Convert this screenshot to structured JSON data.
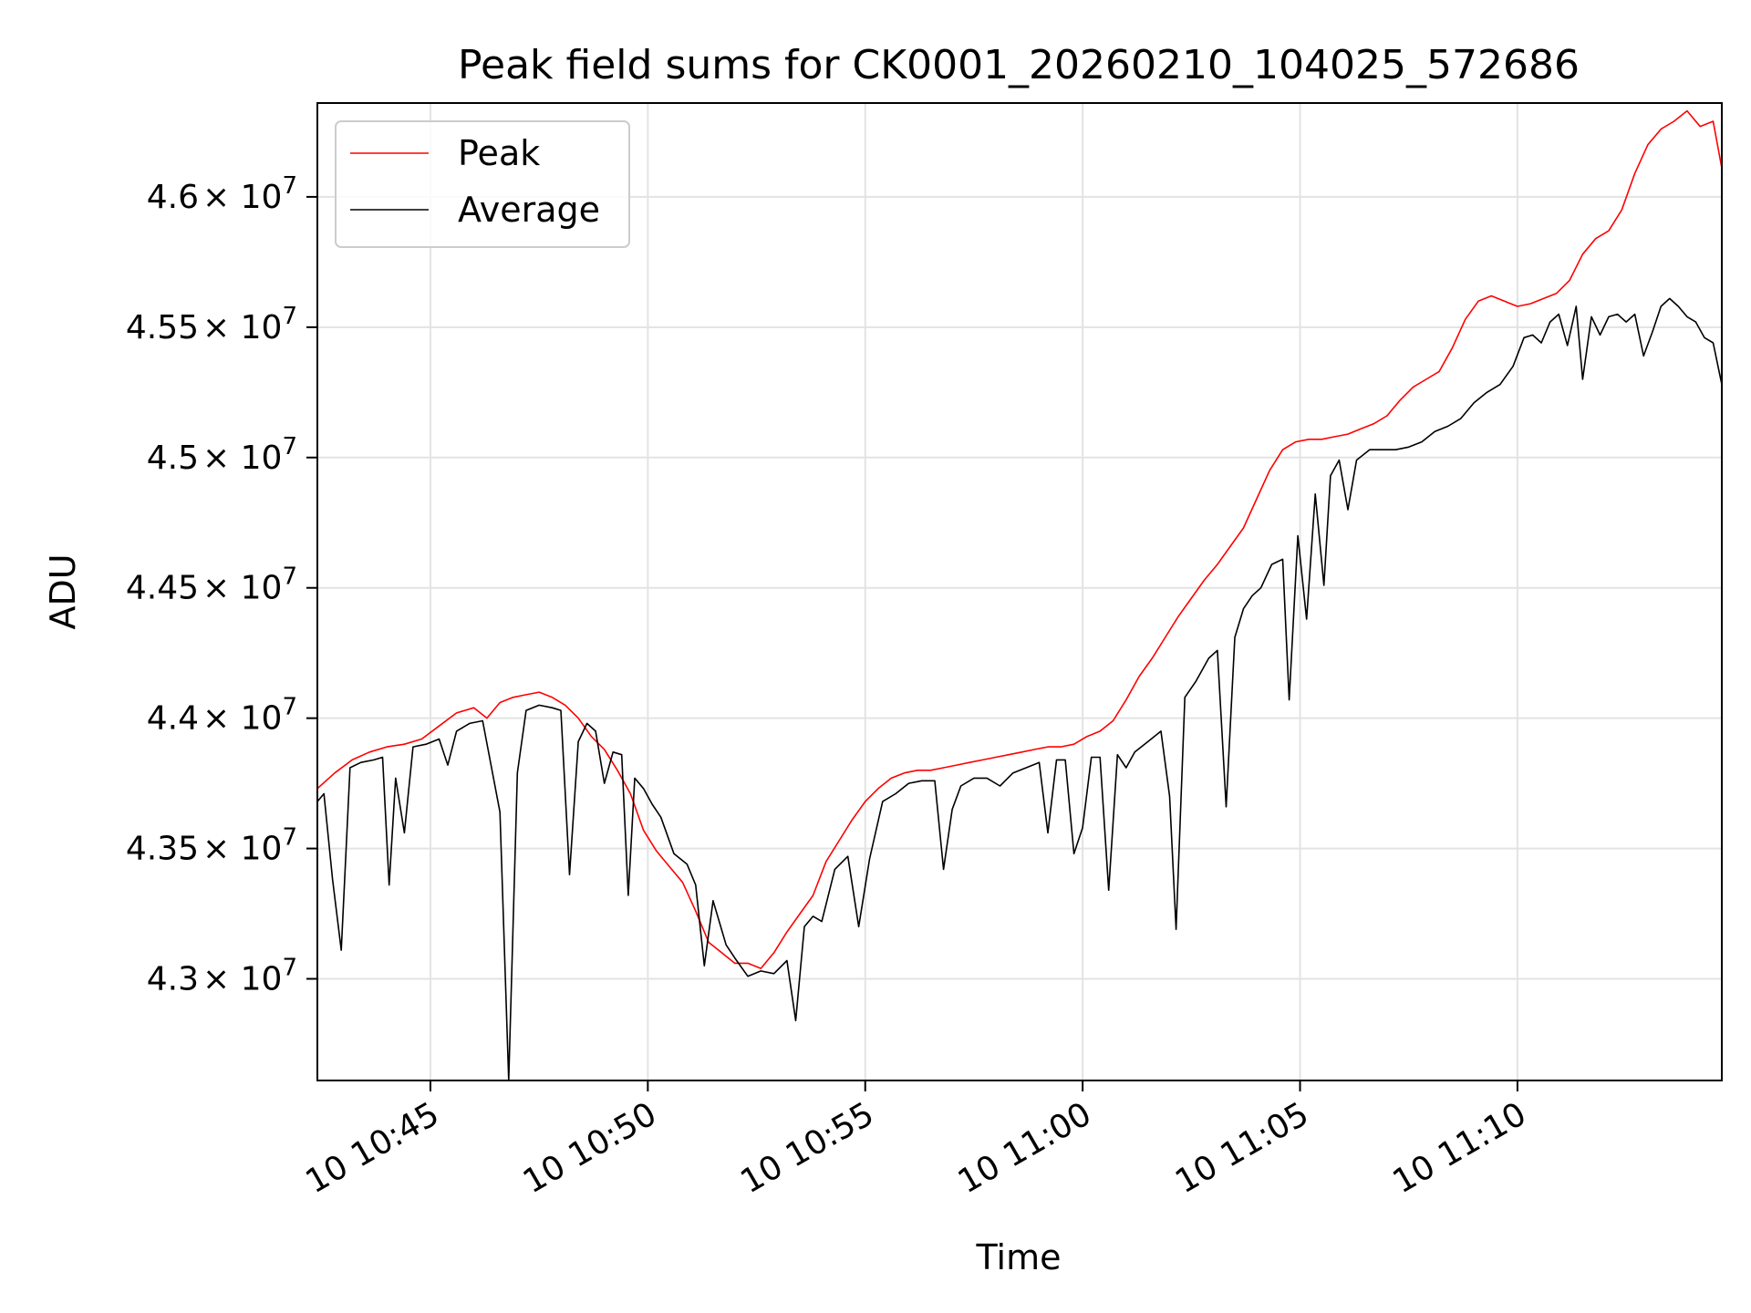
{
  "chart_data": {
    "type": "line",
    "title": "Peak field sums for CK0001_20260210_104025_572686",
    "xlabel": "Time",
    "ylabel": "ADU",
    "x_unit": "minutes after 10:40",
    "xlim": [
      2.4,
      34.7
    ],
    "ylim": [
      42610000,
      46360000
    ],
    "x_ticks": [
      {
        "value": 5,
        "label": "10 10:45"
      },
      {
        "value": 10,
        "label": "10 10:50"
      },
      {
        "value": 15,
        "label": "10 10:55"
      },
      {
        "value": 20,
        "label": "10 11:00"
      },
      {
        "value": 25,
        "label": "10 11:05"
      },
      {
        "value": 30,
        "label": "10 11:10"
      }
    ],
    "y_ticks": [
      {
        "value": 43000000,
        "mantissa": "4.3"
      },
      {
        "value": 43500000,
        "mantissa": "4.35"
      },
      {
        "value": 44000000,
        "mantissa": "4.4"
      },
      {
        "value": 44500000,
        "mantissa": "4.45"
      },
      {
        "value": 45000000,
        "mantissa": "4.5"
      },
      {
        "value": 45500000,
        "mantissa": "4.55"
      },
      {
        "value": 46000000,
        "mantissa": "4.6"
      }
    ],
    "y_tick_suffix": "× 10",
    "y_tick_exponent": "7",
    "grid": true,
    "legend_position": "top-left",
    "series": [
      {
        "name": "Peak",
        "color": "#ff0000",
        "points": [
          [
            2.4,
            43730000
          ],
          [
            2.8,
            43790000
          ],
          [
            3.2,
            43840000
          ],
          [
            3.6,
            43870000
          ],
          [
            4.0,
            43890000
          ],
          [
            4.4,
            43900000
          ],
          [
            4.8,
            43920000
          ],
          [
            5.2,
            43970000
          ],
          [
            5.6,
            44020000
          ],
          [
            6.0,
            44040000
          ],
          [
            6.3,
            44000000
          ],
          [
            6.6,
            44060000
          ],
          [
            6.9,
            44080000
          ],
          [
            7.2,
            44090000
          ],
          [
            7.5,
            44100000
          ],
          [
            7.8,
            44080000
          ],
          [
            8.1,
            44050000
          ],
          [
            8.4,
            44000000
          ],
          [
            8.7,
            43930000
          ],
          [
            9.0,
            43880000
          ],
          [
            9.3,
            43800000
          ],
          [
            9.6,
            43710000
          ],
          [
            9.9,
            43570000
          ],
          [
            10.2,
            43490000
          ],
          [
            10.5,
            43430000
          ],
          [
            10.8,
            43370000
          ],
          [
            11.1,
            43260000
          ],
          [
            11.4,
            43140000
          ],
          [
            11.7,
            43100000
          ],
          [
            12.0,
            43060000
          ],
          [
            12.3,
            43060000
          ],
          [
            12.6,
            43040000
          ],
          [
            12.9,
            43100000
          ],
          [
            13.2,
            43180000
          ],
          [
            13.5,
            43250000
          ],
          [
            13.8,
            43320000
          ],
          [
            14.1,
            43450000
          ],
          [
            14.4,
            43530000
          ],
          [
            14.7,
            43610000
          ],
          [
            15.0,
            43680000
          ],
          [
            15.3,
            43730000
          ],
          [
            15.6,
            43770000
          ],
          [
            15.9,
            43790000
          ],
          [
            16.2,
            43800000
          ],
          [
            16.5,
            43800000
          ],
          [
            16.8,
            43810000
          ],
          [
            17.1,
            43820000
          ],
          [
            17.4,
            43830000
          ],
          [
            17.7,
            43840000
          ],
          [
            18.0,
            43850000
          ],
          [
            18.3,
            43860000
          ],
          [
            18.6,
            43870000
          ],
          [
            18.9,
            43880000
          ],
          [
            19.2,
            43890000
          ],
          [
            19.5,
            43890000
          ],
          [
            19.8,
            43900000
          ],
          [
            20.1,
            43930000
          ],
          [
            20.4,
            43950000
          ],
          [
            20.7,
            43990000
          ],
          [
            21.0,
            44070000
          ],
          [
            21.3,
            44160000
          ],
          [
            21.6,
            44230000
          ],
          [
            21.9,
            44310000
          ],
          [
            22.2,
            44390000
          ],
          [
            22.5,
            44460000
          ],
          [
            22.8,
            44530000
          ],
          [
            23.1,
            44590000
          ],
          [
            23.4,
            44660000
          ],
          [
            23.7,
            44730000
          ],
          [
            24.0,
            44840000
          ],
          [
            24.3,
            44950000
          ],
          [
            24.6,
            45030000
          ],
          [
            24.9,
            45060000
          ],
          [
            25.2,
            45070000
          ],
          [
            25.5,
            45070000
          ],
          [
            25.8,
            45080000
          ],
          [
            26.1,
            45090000
          ],
          [
            26.4,
            45110000
          ],
          [
            26.7,
            45130000
          ],
          [
            27.0,
            45160000
          ],
          [
            27.3,
            45220000
          ],
          [
            27.6,
            45270000
          ],
          [
            27.9,
            45300000
          ],
          [
            28.2,
            45330000
          ],
          [
            28.5,
            45420000
          ],
          [
            28.8,
            45530000
          ],
          [
            29.1,
            45600000
          ],
          [
            29.4,
            45620000
          ],
          [
            29.7,
            45600000
          ],
          [
            30.0,
            45580000
          ],
          [
            30.3,
            45590000
          ],
          [
            30.6,
            45610000
          ],
          [
            30.9,
            45630000
          ],
          [
            31.2,
            45680000
          ],
          [
            31.5,
            45780000
          ],
          [
            31.8,
            45840000
          ],
          [
            32.1,
            45870000
          ],
          [
            32.4,
            45950000
          ],
          [
            32.7,
            46090000
          ],
          [
            33.0,
            46200000
          ],
          [
            33.3,
            46260000
          ],
          [
            33.6,
            46290000
          ],
          [
            33.9,
            46330000
          ],
          [
            34.2,
            46270000
          ],
          [
            34.5,
            46290000
          ],
          [
            34.7,
            46110000
          ]
        ]
      },
      {
        "name": "Average",
        "color": "#000000",
        "points": [
          [
            2.4,
            43680000
          ],
          [
            2.55,
            43710000
          ],
          [
            2.75,
            43380000
          ],
          [
            2.95,
            43110000
          ],
          [
            3.15,
            43810000
          ],
          [
            3.4,
            43830000
          ],
          [
            3.7,
            43840000
          ],
          [
            3.9,
            43850000
          ],
          [
            4.05,
            43360000
          ],
          [
            4.2,
            43770000
          ],
          [
            4.4,
            43560000
          ],
          [
            4.6,
            43890000
          ],
          [
            4.9,
            43900000
          ],
          [
            5.2,
            43920000
          ],
          [
            5.4,
            43820000
          ],
          [
            5.6,
            43950000
          ],
          [
            5.9,
            43980000
          ],
          [
            6.2,
            43990000
          ],
          [
            6.6,
            43640000
          ],
          [
            6.8,
            42610000
          ],
          [
            7.0,
            43790000
          ],
          [
            7.2,
            44030000
          ],
          [
            7.5,
            44050000
          ],
          [
            7.8,
            44040000
          ],
          [
            8.0,
            44030000
          ],
          [
            8.2,
            43400000
          ],
          [
            8.4,
            43910000
          ],
          [
            8.6,
            43980000
          ],
          [
            8.8,
            43950000
          ],
          [
            9.0,
            43750000
          ],
          [
            9.2,
            43870000
          ],
          [
            9.4,
            43860000
          ],
          [
            9.55,
            43320000
          ],
          [
            9.7,
            43770000
          ],
          [
            9.9,
            43730000
          ],
          [
            10.1,
            43670000
          ],
          [
            10.3,
            43620000
          ],
          [
            10.6,
            43480000
          ],
          [
            10.9,
            43440000
          ],
          [
            11.1,
            43360000
          ],
          [
            11.3,
            43050000
          ],
          [
            11.5,
            43300000
          ],
          [
            11.8,
            43130000
          ],
          [
            12.0,
            43080000
          ],
          [
            12.3,
            43010000
          ],
          [
            12.6,
            43030000
          ],
          [
            12.9,
            43020000
          ],
          [
            13.2,
            43070000
          ],
          [
            13.4,
            42840000
          ],
          [
            13.6,
            43200000
          ],
          [
            13.8,
            43240000
          ],
          [
            14.0,
            43220000
          ],
          [
            14.3,
            43420000
          ],
          [
            14.6,
            43470000
          ],
          [
            14.85,
            43200000
          ],
          [
            15.1,
            43460000
          ],
          [
            15.4,
            43680000
          ],
          [
            15.7,
            43710000
          ],
          [
            16.0,
            43750000
          ],
          [
            16.3,
            43760000
          ],
          [
            16.6,
            43760000
          ],
          [
            16.8,
            43420000
          ],
          [
            17.0,
            43650000
          ],
          [
            17.2,
            43740000
          ],
          [
            17.5,
            43770000
          ],
          [
            17.8,
            43770000
          ],
          [
            18.1,
            43740000
          ],
          [
            18.4,
            43790000
          ],
          [
            18.7,
            43810000
          ],
          [
            19.0,
            43830000
          ],
          [
            19.2,
            43560000
          ],
          [
            19.4,
            43840000
          ],
          [
            19.6,
            43840000
          ],
          [
            19.8,
            43480000
          ],
          [
            20.0,
            43580000
          ],
          [
            20.2,
            43850000
          ],
          [
            20.4,
            43850000
          ],
          [
            20.6,
            43340000
          ],
          [
            20.8,
            43860000
          ],
          [
            21.0,
            43810000
          ],
          [
            21.2,
            43870000
          ],
          [
            21.5,
            43910000
          ],
          [
            21.8,
            43950000
          ],
          [
            22.0,
            43700000
          ],
          [
            22.15,
            43190000
          ],
          [
            22.35,
            44080000
          ],
          [
            22.6,
            44140000
          ],
          [
            22.9,
            44230000
          ],
          [
            23.1,
            44260000
          ],
          [
            23.3,
            43660000
          ],
          [
            23.5,
            44310000
          ],
          [
            23.7,
            44420000
          ],
          [
            23.9,
            44470000
          ],
          [
            24.1,
            44500000
          ],
          [
            24.35,
            44590000
          ],
          [
            24.6,
            44610000
          ],
          [
            24.75,
            44070000
          ],
          [
            24.95,
            44700000
          ],
          [
            25.15,
            44380000
          ],
          [
            25.35,
            44860000
          ],
          [
            25.55,
            44510000
          ],
          [
            25.7,
            44930000
          ],
          [
            25.9,
            44990000
          ],
          [
            26.1,
            44800000
          ],
          [
            26.3,
            44990000
          ],
          [
            26.6,
            45030000
          ],
          [
            26.9,
            45030000
          ],
          [
            27.2,
            45030000
          ],
          [
            27.5,
            45040000
          ],
          [
            27.8,
            45060000
          ],
          [
            28.1,
            45100000
          ],
          [
            28.4,
            45120000
          ],
          [
            28.7,
            45150000
          ],
          [
            29.0,
            45210000
          ],
          [
            29.3,
            45250000
          ],
          [
            29.6,
            45280000
          ],
          [
            29.9,
            45350000
          ],
          [
            30.15,
            45460000
          ],
          [
            30.35,
            45470000
          ],
          [
            30.55,
            45440000
          ],
          [
            30.75,
            45520000
          ],
          [
            30.95,
            45550000
          ],
          [
            31.15,
            45430000
          ],
          [
            31.35,
            45580000
          ],
          [
            31.5,
            45300000
          ],
          [
            31.7,
            45540000
          ],
          [
            31.9,
            45470000
          ],
          [
            32.1,
            45540000
          ],
          [
            32.3,
            45550000
          ],
          [
            32.5,
            45520000
          ],
          [
            32.7,
            45550000
          ],
          [
            32.9,
            45390000
          ],
          [
            33.1,
            45480000
          ],
          [
            33.3,
            45580000
          ],
          [
            33.5,
            45610000
          ],
          [
            33.7,
            45580000
          ],
          [
            33.9,
            45540000
          ],
          [
            34.1,
            45520000
          ],
          [
            34.3,
            45460000
          ],
          [
            34.5,
            45440000
          ],
          [
            34.7,
            45280000
          ]
        ]
      }
    ]
  }
}
